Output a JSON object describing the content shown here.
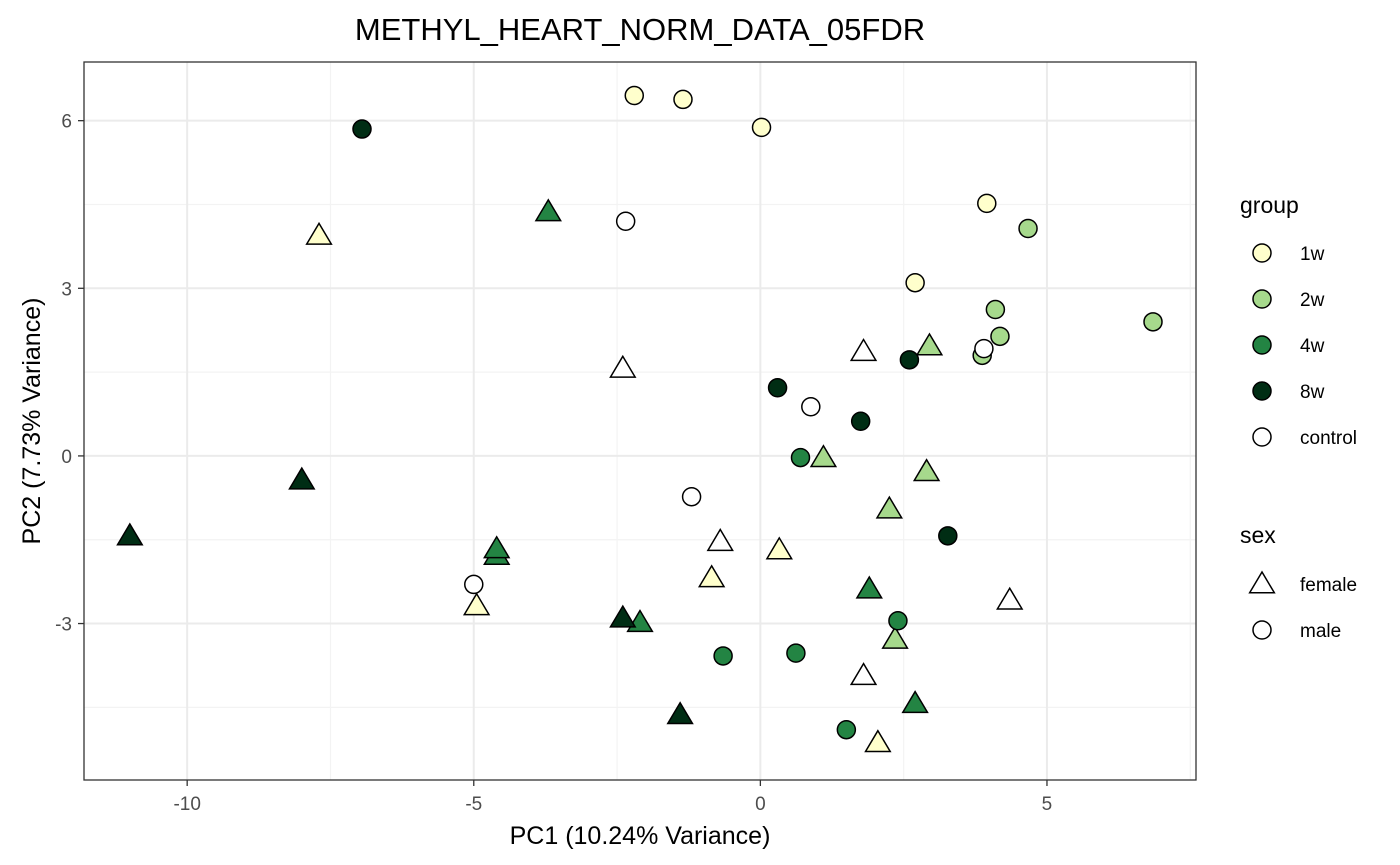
{
  "chart_data": {
    "type": "scatter",
    "title": "METHYL_HEART_NORM_DATA_05FDR",
    "xlabel": "PC1 (10.24% Variance)",
    "ylabel": "PC2 (7.73% Variance)",
    "xlim": [
      -11.8,
      7.6
    ],
    "ylim": [
      -5.8,
      7.05
    ],
    "x_ticks": [
      -10,
      -5,
      0,
      5
    ],
    "x_tick_labels": [
      "-10",
      "-5",
      "0",
      "5"
    ],
    "y_ticks": [
      -3,
      0,
      3,
      6
    ],
    "y_tick_labels": [
      "-3",
      "0",
      "3",
      "6"
    ],
    "grid": true,
    "legend_position": "right",
    "group_legend": {
      "title": "group",
      "items": [
        {
          "label": "1w",
          "color": "#FFFFCC"
        },
        {
          "label": "2w",
          "color": "#A6D98C"
        },
        {
          "label": "4w",
          "color": "#238443"
        },
        {
          "label": "8w",
          "color": "#002D14"
        },
        {
          "label": "control",
          "color": "#FFFFFF"
        }
      ]
    },
    "sex_legend": {
      "title": "sex",
      "items": [
        {
          "label": "female",
          "shape": "triangle"
        },
        {
          "label": "male",
          "shape": "circle"
        }
      ]
    },
    "points": [
      {
        "x": -2.2,
        "y": 6.45,
        "group": "1w",
        "sex": "male"
      },
      {
        "x": -1.35,
        "y": 6.38,
        "group": "1w",
        "sex": "male"
      },
      {
        "x": 0.02,
        "y": 5.88,
        "group": "1w",
        "sex": "male"
      },
      {
        "x": 3.95,
        "y": 4.52,
        "group": "1w",
        "sex": "male"
      },
      {
        "x": 2.7,
        "y": 3.1,
        "group": "1w",
        "sex": "male"
      },
      {
        "x": -7.7,
        "y": 3.93,
        "group": "1w",
        "sex": "female"
      },
      {
        "x": 0.33,
        "y": -1.7,
        "group": "1w",
        "sex": "female"
      },
      {
        "x": -0.85,
        "y": -2.2,
        "group": "1w",
        "sex": "female"
      },
      {
        "x": -4.95,
        "y": -2.7,
        "group": "1w",
        "sex": "female"
      },
      {
        "x": 2.05,
        "y": -5.15,
        "group": "1w",
        "sex": "female"
      },
      {
        "x": 4.67,
        "y": 4.07,
        "group": "2w",
        "sex": "male"
      },
      {
        "x": 4.1,
        "y": 2.62,
        "group": "2w",
        "sex": "male"
      },
      {
        "x": 4.18,
        "y": 2.14,
        "group": "2w",
        "sex": "male"
      },
      {
        "x": 3.87,
        "y": 1.8,
        "group": "2w",
        "sex": "male"
      },
      {
        "x": 6.85,
        "y": 2.4,
        "group": "2w",
        "sex": "male"
      },
      {
        "x": 2.95,
        "y": 1.95,
        "group": "2w",
        "sex": "female"
      },
      {
        "x": 1.1,
        "y": -0.05,
        "group": "2w",
        "sex": "female"
      },
      {
        "x": 2.9,
        "y": -0.3,
        "group": "2w",
        "sex": "female"
      },
      {
        "x": 2.25,
        "y": -0.97,
        "group": "2w",
        "sex": "female"
      },
      {
        "x": 2.35,
        "y": -3.3,
        "group": "2w",
        "sex": "female"
      },
      {
        "x": -3.7,
        "y": 4.35,
        "group": "4w",
        "sex": "female"
      },
      {
        "x": -4.6,
        "y": -1.8,
        "group": "4w",
        "sex": "female"
      },
      {
        "x": -4.6,
        "y": -1.68,
        "group": "4w",
        "sex": "female"
      },
      {
        "x": -2.1,
        "y": -3.0,
        "group": "4w",
        "sex": "female"
      },
      {
        "x": 1.9,
        "y": -2.4,
        "group": "4w",
        "sex": "female"
      },
      {
        "x": 2.7,
        "y": -4.45,
        "group": "4w",
        "sex": "female"
      },
      {
        "x": 0.7,
        "y": -0.03,
        "group": "4w",
        "sex": "male"
      },
      {
        "x": -0.65,
        "y": -3.58,
        "group": "4w",
        "sex": "male"
      },
      {
        "x": 0.62,
        "y": -3.53,
        "group": "4w",
        "sex": "male"
      },
      {
        "x": 2.4,
        "y": -2.95,
        "group": "4w",
        "sex": "male"
      },
      {
        "x": 1.5,
        "y": -4.9,
        "group": "4w",
        "sex": "male"
      },
      {
        "x": -6.95,
        "y": 5.85,
        "group": "8w",
        "sex": "male"
      },
      {
        "x": 0.3,
        "y": 1.22,
        "group": "8w",
        "sex": "male"
      },
      {
        "x": 1.75,
        "y": 0.62,
        "group": "8w",
        "sex": "male"
      },
      {
        "x": 2.6,
        "y": 1.72,
        "group": "8w",
        "sex": "male"
      },
      {
        "x": 3.27,
        "y": -1.43,
        "group": "8w",
        "sex": "male"
      },
      {
        "x": -11.0,
        "y": -1.45,
        "group": "8w",
        "sex": "female"
      },
      {
        "x": -8.0,
        "y": -0.45,
        "group": "8w",
        "sex": "female"
      },
      {
        "x": -2.4,
        "y": -2.92,
        "group": "8w",
        "sex": "female"
      },
      {
        "x": -1.4,
        "y": -4.65,
        "group": "8w",
        "sex": "female"
      },
      {
        "x": -2.35,
        "y": 4.2,
        "group": "control",
        "sex": "male"
      },
      {
        "x": 0.88,
        "y": 0.88,
        "group": "control",
        "sex": "male"
      },
      {
        "x": -1.2,
        "y": -0.73,
        "group": "control",
        "sex": "male"
      },
      {
        "x": -5.0,
        "y": -2.3,
        "group": "control",
        "sex": "male"
      },
      {
        "x": 3.9,
        "y": 1.92,
        "group": "control",
        "sex": "male"
      },
      {
        "x": -2.4,
        "y": 1.55,
        "group": "control",
        "sex": "female"
      },
      {
        "x": 1.8,
        "y": 1.85,
        "group": "control",
        "sex": "female"
      },
      {
        "x": -0.7,
        "y": -1.55,
        "group": "control",
        "sex": "female"
      },
      {
        "x": 4.35,
        "y": -2.6,
        "group": "control",
        "sex": "female"
      },
      {
        "x": 1.8,
        "y": -3.95,
        "group": "control",
        "sex": "female"
      }
    ]
  }
}
